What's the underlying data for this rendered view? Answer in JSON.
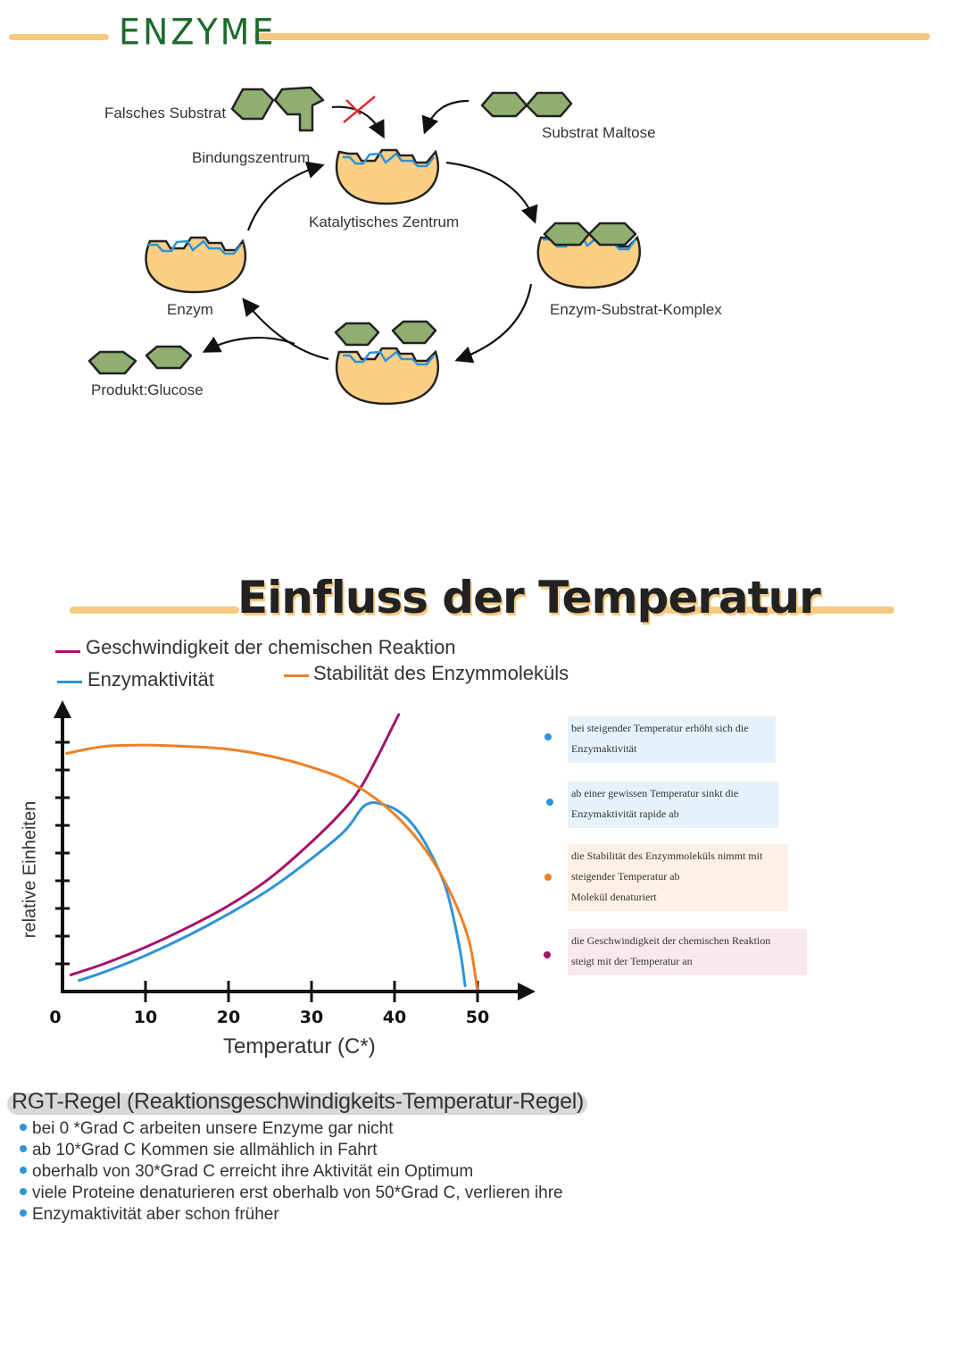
{
  "enzyme_diagram": {
    "title": "ENZYME",
    "labels": {
      "wrong_substrate": "Falsches Substrat",
      "binding_center": "Bindungszentrum",
      "substrate_maltose": "Substrat Maltose",
      "catalytic_center": "Katalytisches Zentrum",
      "enzyme": "Enzym",
      "enzyme_substrate_complex": "Enzym-Substrat-Komplex",
      "product": "Produkt:Glucose"
    }
  },
  "temperature_section": {
    "title": "Einfluss der Temperatur",
    "legend": {
      "reaction_speed": "Geschwindigkeit der chemischen Reaktion",
      "enzyme_activity": "Enzymaktivität",
      "stability": "Stabilität des Enzymmoleküls"
    },
    "notes": [
      {
        "line1": "bei steigender Temperatur erhöht sich die",
        "line2": "Enzymaktivität",
        "line3": "",
        "color": "#2e93d8"
      },
      {
        "line1": "ab einer gewissen Temperatur sinkt die",
        "line2": "Enzymaktivität rapide ab",
        "line3": "",
        "color": "#2e93d8"
      },
      {
        "line1": "die Stabilität des Enzymmoleküls nimmt mit",
        "line2": "steigender Temperatur ab",
        "line3": "Molekül denaturiert",
        "color": "#ef7f26"
      },
      {
        "line1": "die Geschwindigkeit der chemischen Reaktion",
        "line2": "steigt mit der Temperatur an",
        "line3": "",
        "color": "#a3136b"
      }
    ]
  },
  "chart_data": {
    "type": "line",
    "xlabel": "Temperatur (C*)",
    "ylabel": "relative Einheiten",
    "x_ticks": [
      "0",
      "10",
      "20",
      "30",
      "40",
      "50"
    ],
    "xlim": [
      0,
      60
    ],
    "ylim": [
      0,
      10
    ],
    "series": [
      {
        "name": "Geschwindigkeit der chemischen Reaktion",
        "color": "#a3136b",
        "x": [
          1,
          5,
          10,
          15,
          20,
          25,
          30,
          34,
          36,
          38,
          39.5,
          40.5
        ],
        "y": [
          0.6,
          1.0,
          1.6,
          2.3,
          3.1,
          4.1,
          5.4,
          6.6,
          7.4,
          8.5,
          9.4,
          10.0
        ]
      },
      {
        "name": "Enzymaktivität",
        "color": "#2e93d8",
        "x": [
          2,
          5,
          10,
          15,
          20,
          25,
          30,
          34,
          36,
          37,
          38,
          40,
          42,
          44,
          46,
          47,
          48,
          48.5
        ],
        "y": [
          0.4,
          0.7,
          1.3,
          2.0,
          2.8,
          3.7,
          4.8,
          5.8,
          6.6,
          6.8,
          6.8,
          6.6,
          6.1,
          5.2,
          3.9,
          2.8,
          1.3,
          0.2
        ]
      },
      {
        "name": "Stabilität des Enzymmoleküls",
        "color": "#ef7f26",
        "x": [
          0.5,
          5,
          10,
          15,
          20,
          25,
          30,
          35,
          40,
          44,
          47,
          49,
          50
        ],
        "y": [
          8.6,
          8.85,
          8.9,
          8.85,
          8.75,
          8.5,
          8.1,
          7.5,
          6.4,
          5.0,
          3.4,
          1.8,
          0.0
        ]
      }
    ]
  },
  "rgt": {
    "title": "RGT-Regel (Reaktionsgeschwindigkeits-Temperatur-Regel)",
    "items": [
      "bei 0 *Grad C arbeiten unsere Enzyme gar nicht",
      "ab 10*Grad C Kommen sie allmählich in Fahrt",
      "oberhalb von 30*Grad C erreicht ihre Aktivität ein Optimum",
      "viele Proteine denaturieren erst oberhalb von 50*Grad C, verlieren ihre",
      "Enzymaktivität aber schon früher"
    ]
  }
}
